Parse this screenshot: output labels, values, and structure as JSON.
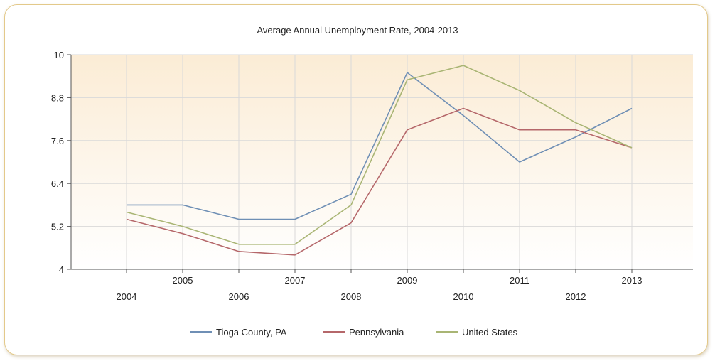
{
  "chart_data": {
    "type": "line",
    "title": "Average Annual Unemployment Rate, 2004-2013",
    "x": [
      2004,
      2005,
      2006,
      2007,
      2008,
      2009,
      2010,
      2011,
      2012,
      2013
    ],
    "x_tick_labels": [
      "2004",
      "2005",
      "2006",
      "2007",
      "2008",
      "2009",
      "2010",
      "2011",
      "2012",
      "2013"
    ],
    "y_tick_labels": [
      "4",
      "5.2",
      "6.4",
      "7.6",
      "8.8",
      "10"
    ],
    "ylim": [
      4,
      10
    ],
    "grid": true,
    "legend_position": "bottom",
    "series": [
      {
        "name": "Tioga County, PA",
        "color": "#6f8fb5",
        "values": [
          5.8,
          5.8,
          5.4,
          5.4,
          6.1,
          9.5,
          8.3,
          7.0,
          7.7,
          8.5
        ]
      },
      {
        "name": "Pennsylvania",
        "color": "#b5676a",
        "values": [
          5.4,
          5.0,
          4.5,
          4.4,
          5.3,
          7.9,
          8.5,
          7.9,
          7.9,
          7.4
        ]
      },
      {
        "name": "United States",
        "color": "#a9b574",
        "values": [
          5.6,
          5.2,
          4.7,
          4.7,
          5.8,
          9.3,
          9.7,
          9.0,
          8.1,
          7.4
        ]
      }
    ]
  }
}
